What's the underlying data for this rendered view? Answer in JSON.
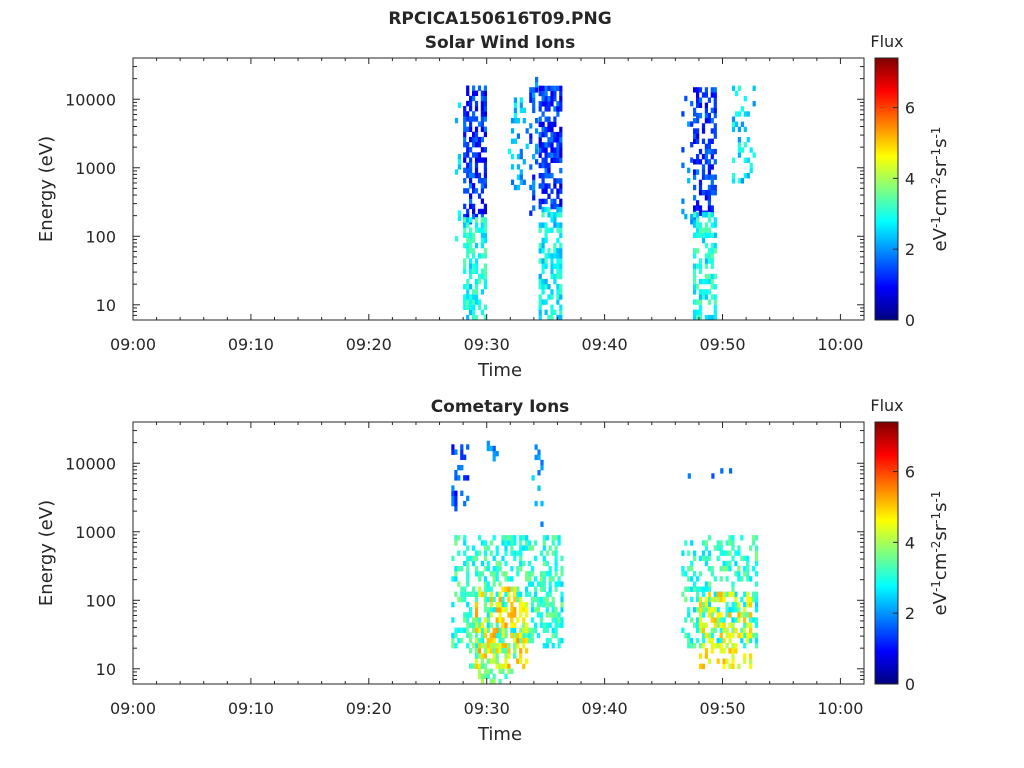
{
  "figure_title": "RPCICA150616T09.PNG",
  "colors": {
    "axes": "#262626",
    "background": "#ffffff",
    "colormap": [
      "#00007f",
      "#0000ff",
      "#007fff",
      "#00ffff",
      "#7fff7f",
      "#ffff00",
      "#ff7f00",
      "#ff0000",
      "#7f0000"
    ]
  },
  "chart_data": [
    {
      "type": "heatmap",
      "title": "Solar Wind Ions",
      "xlabel": "Time",
      "ylabel": "Energy (eV)",
      "x_ticks": [
        "09:00",
        "09:10",
        "09:20",
        "09:30",
        "09:40",
        "09:50",
        "10:00"
      ],
      "x_range_minutes": [
        0,
        62
      ],
      "y_scale": "log",
      "y_ticks": [
        "10",
        "100",
        "1000",
        "10000"
      ],
      "y_range": [
        6,
        40000
      ],
      "colorbar": {
        "label": "Flux",
        "units": "eV-1cm-2sr-1s-1",
        "range": [
          0,
          7.4
        ],
        "ticks": [
          "0",
          "2",
          "4",
          "6"
        ]
      },
      "clusters": [
        {
          "t_start": 27.3,
          "t_end": 27.8,
          "e_min": 30,
          "e_max": 9000,
          "flux": 2.6,
          "density": 0.18
        },
        {
          "t_start": 28.0,
          "t_end": 30.0,
          "e_min": 150,
          "e_max": 14000,
          "flux": 1.3,
          "density": 0.6
        },
        {
          "t_start": 28.0,
          "t_end": 30.0,
          "e_min": 6,
          "e_max": 180,
          "flux": 2.9,
          "density": 0.6
        },
        {
          "t_start": 31.8,
          "t_end": 33.5,
          "e_min": 400,
          "e_max": 9000,
          "flux": 2.3,
          "density": 0.2
        },
        {
          "t_start": 33.6,
          "t_end": 34.2,
          "e_min": 200,
          "e_max": 18000,
          "flux": 1.6,
          "density": 0.3
        },
        {
          "t_start": 34.4,
          "t_end": 36.3,
          "e_min": 250,
          "e_max": 14000,
          "flux": 1.3,
          "density": 0.65
        },
        {
          "t_start": 34.4,
          "t_end": 36.3,
          "e_min": 6,
          "e_max": 250,
          "flux": 2.7,
          "density": 0.6
        },
        {
          "t_start": 46.5,
          "t_end": 47.6,
          "e_min": 150,
          "e_max": 11000,
          "flux": 1.8,
          "density": 0.12
        },
        {
          "t_start": 47.5,
          "t_end": 49.3,
          "e_min": 200,
          "e_max": 14000,
          "flux": 1.3,
          "density": 0.55
        },
        {
          "t_start": 47.5,
          "t_end": 49.3,
          "e_min": 6,
          "e_max": 200,
          "flux": 2.9,
          "density": 0.55
        },
        {
          "t_start": 50.8,
          "t_end": 52.8,
          "e_min": 500,
          "e_max": 16000,
          "flux": 2.5,
          "density": 0.25
        }
      ]
    },
    {
      "type": "heatmap",
      "title": "Cometary Ions",
      "xlabel": "Time",
      "ylabel": "Energy (eV)",
      "x_ticks": [
        "09:00",
        "09:10",
        "09:20",
        "09:30",
        "09:40",
        "09:50",
        "10:00"
      ],
      "x_range_minutes": [
        0,
        62
      ],
      "y_scale": "log",
      "y_ticks": [
        "10",
        "100",
        "1000",
        "10000"
      ],
      "y_range": [
        6,
        40000
      ],
      "colorbar": {
        "label": "Flux",
        "units": "eV-1cm-2sr-1s-1",
        "range": [
          0,
          7.4
        ],
        "ticks": [
          "0",
          "2",
          "4",
          "6"
        ]
      },
      "clusters": [
        {
          "t_start": 27.0,
          "t_end": 28.5,
          "e_min": 2000,
          "e_max": 18000,
          "flux": 1.4,
          "density": 0.35
        },
        {
          "t_start": 30.0,
          "t_end": 30.8,
          "e_min": 9000,
          "e_max": 18000,
          "flux": 2.0,
          "density": 0.3
        },
        {
          "t_start": 33.8,
          "t_end": 34.6,
          "e_min": 1000,
          "e_max": 16000,
          "flux": 2.0,
          "density": 0.2
        },
        {
          "t_start": 27.0,
          "t_end": 36.3,
          "e_min": 20,
          "e_max": 800,
          "flux": 3.1,
          "density": 0.45
        },
        {
          "t_start": 29.0,
          "t_end": 33.5,
          "e_min": 10,
          "e_max": 150,
          "flux": 4.8,
          "density": 0.4
        },
        {
          "t_start": 28.5,
          "t_end": 32.5,
          "e_min": 6,
          "e_max": 30,
          "flux": 3.6,
          "density": 0.3
        },
        {
          "t_start": 46.5,
          "t_end": 53.0,
          "e_min": 20,
          "e_max": 800,
          "flux": 3.1,
          "density": 0.4
        },
        {
          "t_start": 48.0,
          "t_end": 52.5,
          "e_min": 10,
          "e_max": 120,
          "flux": 4.6,
          "density": 0.35
        },
        {
          "t_start": 46.3,
          "t_end": 51.0,
          "e_min": 6000,
          "e_max": 12000,
          "flux": 2.0,
          "density": 0.1
        }
      ]
    }
  ]
}
